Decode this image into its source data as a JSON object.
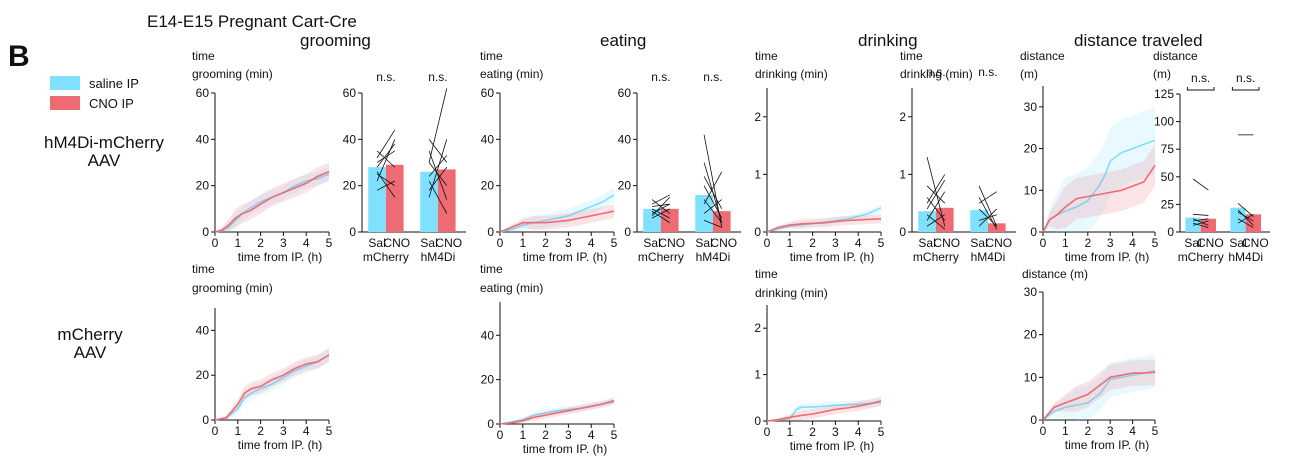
{
  "panel_letter": "B",
  "header_title": "E14-E15 Pregnant Cart-Cre",
  "columns": [
    "grooming",
    "eating",
    "drinking",
    "distance traveled"
  ],
  "legend": {
    "saline": {
      "label": "saline IP",
      "color": "#7fe0ff"
    },
    "cno": {
      "label": "CNO IP",
      "color": "#ef6b73"
    }
  },
  "rows": [
    "hM4Di-mCherry\nAAV",
    "mCherry\nAAV"
  ],
  "colors": {
    "saline": "#7fe0ff",
    "cno": "#ef6b73",
    "axis": "#111111"
  },
  "xlabel": "time from IP. (h)",
  "chart_data": [
    {
      "type": "line",
      "id": "grooming-hm4di",
      "ylabel": [
        "time",
        "grooming (min)"
      ],
      "xlabel": "time from IP. (h)",
      "xlim": [
        0,
        5
      ],
      "ylim": [
        0,
        60
      ],
      "yticks": [
        0,
        20,
        40,
        60
      ],
      "xticks": [
        0,
        1,
        2,
        3,
        4,
        5
      ],
      "series": [
        {
          "key": "saline",
          "x": [
            0,
            0.3,
            0.6,
            0.9,
            1.2,
            1.5,
            2,
            2.5,
            3,
            3.5,
            4,
            4.5,
            5
          ],
          "y": [
            0,
            0.5,
            2,
            5,
            8,
            10,
            13,
            15,
            17,
            20,
            22,
            23,
            25
          ],
          "band": 3
        },
        {
          "key": "cno",
          "x": [
            0,
            0.3,
            0.6,
            0.9,
            1.2,
            1.5,
            2,
            2.5,
            3,
            3.5,
            4,
            4.5,
            5
          ],
          "y": [
            0,
            0.8,
            3,
            6,
            8,
            9,
            12,
            15,
            17,
            19,
            21,
            24,
            26
          ],
          "band": 4
        }
      ]
    },
    {
      "type": "bar",
      "id": "grooming-hm4di-bar",
      "ylabel": [
        "time",
        "grooming (min)"
      ],
      "ylim": [
        0,
        60
      ],
      "yticks": [
        0,
        20,
        40,
        60
      ],
      "groups": [
        {
          "label": "mCherry",
          "sig": "n.s.",
          "saline": 28,
          "cno": 29,
          "pairs": [
            [
              22,
              40
            ],
            [
              30,
              35
            ],
            [
              25,
              20
            ],
            [
              35,
              28
            ],
            [
              28,
              38
            ],
            [
              18,
              22
            ],
            [
              32,
              44
            ],
            [
              26,
              15
            ]
          ]
        },
        {
          "label": "hM4Di",
          "sig": "n.s.",
          "saline": 26,
          "cno": 27,
          "pairs": [
            [
              40,
              30
            ],
            [
              30,
              62
            ],
            [
              18,
              28
            ],
            [
              35,
              14
            ],
            [
              24,
              33
            ],
            [
              15,
              40
            ],
            [
              30,
              20
            ],
            [
              22,
              8
            ]
          ]
        }
      ],
      "tick_labels": [
        "Sal",
        "CNO"
      ]
    },
    {
      "type": "line",
      "id": "eating-hm4di",
      "ylabel": [
        "time",
        "eating (min)"
      ],
      "xlabel": "time from IP. (h)",
      "xlim": [
        0,
        5
      ],
      "ylim": [
        0,
        60
      ],
      "yticks": [
        0,
        20,
        40,
        60
      ],
      "xticks": [
        0,
        1,
        2,
        3,
        4,
        5
      ],
      "series": [
        {
          "key": "saline",
          "x": [
            0,
            0.5,
            1,
            1.5,
            2,
            2.5,
            3,
            3.5,
            4,
            4.5,
            5
          ],
          "y": [
            0,
            1,
            3,
            4,
            5,
            6,
            7,
            9,
            11,
            13,
            16
          ],
          "band": 3
        },
        {
          "key": "cno",
          "x": [
            0,
            0.5,
            1,
            1.5,
            2,
            2.5,
            3,
            3.5,
            4,
            4.5,
            5
          ],
          "y": [
            0,
            2,
            4,
            4,
            4,
            4.5,
            5,
            6,
            7,
            8,
            9
          ],
          "band": 3
        }
      ]
    },
    {
      "type": "bar",
      "id": "eating-hm4di-bar",
      "ylabel": [
        "",
        ""
      ],
      "ylim": [
        0,
        60
      ],
      "yticks": [
        0,
        20,
        40,
        60
      ],
      "groups": [
        {
          "label": "mCherry",
          "sig": "n.s.",
          "saline": 10,
          "cno": 10,
          "pairs": [
            [
              8,
              12
            ],
            [
              10,
              6
            ],
            [
              12,
              16
            ],
            [
              6,
              10
            ],
            [
              9,
              4
            ],
            [
              14,
              8
            ],
            [
              11,
              12
            ],
            [
              7,
              15
            ]
          ]
        },
        {
          "label": "hM4Di",
          "sig": "n.s.",
          "saline": 16,
          "cno": 9,
          "pairs": [
            [
              42,
              2
            ],
            [
              30,
              4
            ],
            [
              20,
              6
            ],
            [
              12,
              26
            ],
            [
              8,
              14
            ],
            [
              5,
              2
            ],
            [
              24,
              10
            ],
            [
              14,
              4
            ]
          ]
        }
      ],
      "tick_labels": [
        "Sal",
        "CNO"
      ]
    },
    {
      "type": "line",
      "id": "drinking-hm4di",
      "ylabel": [
        "time",
        "drinking (min)"
      ],
      "xlabel": "time from IP. (h)",
      "xlim": [
        0,
        5
      ],
      "ylim": [
        0,
        2.5
      ],
      "yticks": [
        0,
        1,
        2
      ],
      "xticks": [
        0,
        1,
        2,
        3,
        4,
        5
      ],
      "series": [
        {
          "key": "saline",
          "x": [
            0,
            0.5,
            1,
            1.5,
            2,
            2.5,
            3,
            3.5,
            4,
            4.5,
            5
          ],
          "y": [
            0,
            0.05,
            0.1,
            0.12,
            0.15,
            0.17,
            0.2,
            0.22,
            0.27,
            0.33,
            0.42
          ],
          "band": 0.06
        },
        {
          "key": "cno",
          "x": [
            0,
            0.5,
            1,
            1.5,
            2,
            2.5,
            3,
            3.5,
            4,
            4.5,
            5
          ],
          "y": [
            0,
            0.08,
            0.12,
            0.14,
            0.15,
            0.16,
            0.18,
            0.2,
            0.21,
            0.22,
            0.23
          ],
          "band": 0.08
        }
      ]
    },
    {
      "type": "bar",
      "id": "drinking-hm4di-bar",
      "ylabel": [
        "time",
        "drinking (min)"
      ],
      "ylim": [
        0,
        2.5
      ],
      "yticks": [
        0,
        1,
        2
      ],
      "groups": [
        {
          "label": "mCherry",
          "sig": "n.s.",
          "saline": 0.36,
          "cno": 0.42,
          "pairs": [
            [
              1.3,
              0.1
            ],
            [
              0.8,
              0.5
            ],
            [
              0.5,
              1.0
            ],
            [
              0.2,
              0.7
            ],
            [
              0.1,
              0.3
            ],
            [
              0.6,
              0.2
            ],
            [
              0.4,
              0.9
            ],
            [
              0.3,
              0.05
            ]
          ]
        },
        {
          "label": "hM4Di",
          "sig": "n.s.",
          "saline": 0.38,
          "cno": 0.15,
          "pairs": [
            [
              0.8,
              0.1
            ],
            [
              0.5,
              0.7
            ],
            [
              0.2,
              0.3
            ],
            [
              0.6,
              0.05
            ],
            [
              0.1,
              0.4
            ],
            [
              0.4,
              0.1
            ]
          ]
        }
      ],
      "tick_labels": [
        "Sal",
        "CNO"
      ]
    },
    {
      "type": "line",
      "id": "distance-hm4di",
      "ylabel": [
        "distance",
        "(m)"
      ],
      "xlabel": "time from IP. (h)",
      "xlim": [
        0,
        5
      ],
      "ylim": [
        0,
        35
      ],
      "yticks": [
        0,
        10,
        20,
        30
      ],
      "xticks": [
        0,
        1,
        2,
        3,
        4,
        5
      ],
      "series": [
        {
          "key": "saline",
          "x": [
            0,
            0.3,
            0.6,
            1,
            1.5,
            2,
            2.5,
            2.8,
            3,
            3.5,
            4,
            4.5,
            5
          ],
          "y": [
            0,
            3,
            4,
            5,
            6,
            7.5,
            11,
            14,
            17,
            19,
            20,
            21,
            22
          ],
          "band": 8
        },
        {
          "key": "cno",
          "x": [
            0,
            0.3,
            0.6,
            1,
            1.5,
            2,
            2.5,
            3,
            3.5,
            4,
            4.5,
            5
          ],
          "y": [
            0,
            3,
            4,
            6,
            8,
            8.5,
            9,
            9.5,
            10,
            11,
            12,
            16
          ],
          "band": 5
        }
      ]
    },
    {
      "type": "bar",
      "id": "distance-hm4di-bar",
      "ylabel": [
        "distance",
        "(m)"
      ],
      "ylim": [
        0,
        125
      ],
      "yticks": [
        0,
        25,
        50,
        75,
        100,
        125
      ],
      "groups": [
        {
          "label": "mCherry",
          "sig": "n.s.",
          "saline": 13,
          "cno": 12,
          "pairs": [
            [
              48,
              38
            ],
            [
              16,
              15
            ],
            [
              10,
              12
            ],
            [
              8,
              4
            ],
            [
              12,
              6
            ],
            [
              6,
              10
            ]
          ]
        },
        {
          "label": "hM4Di",
          "sig": "n.s.",
          "saline": 22,
          "cno": 16,
          "pairs": [
            [
              88,
              88
            ],
            [
              26,
              14
            ],
            [
              18,
              10
            ],
            [
              12,
              4
            ],
            [
              8,
              16
            ],
            [
              20,
              6
            ]
          ]
        }
      ],
      "tick_labels": [
        "Sal",
        "CNO"
      ]
    },
    {
      "type": "line",
      "id": "grooming-mcherry",
      "ylabel": [
        "time",
        "grooming (min)"
      ],
      "xlabel": "time from IP. (h)",
      "xlim": [
        0,
        5
      ],
      "ylim": [
        0,
        50
      ],
      "yticks": [
        0,
        20,
        40
      ],
      "xticks": [
        0,
        1,
        2,
        3,
        4,
        5
      ],
      "series": [
        {
          "key": "saline",
          "x": [
            0,
            0.5,
            1,
            1.3,
            1.6,
            2,
            2.5,
            3,
            3.5,
            4,
            4.5,
            5
          ],
          "y": [
            0,
            1,
            5,
            10,
            12,
            14,
            16,
            19,
            22,
            24,
            26,
            29
          ],
          "band": 3
        },
        {
          "key": "cno",
          "x": [
            0,
            0.5,
            1,
            1.3,
            1.6,
            2,
            2.5,
            3,
            3.5,
            4,
            4.5,
            5
          ],
          "y": [
            0,
            1,
            7,
            12,
            14,
            15,
            18,
            20,
            23,
            25,
            26,
            29
          ],
          "band": 3
        }
      ]
    },
    {
      "type": "line",
      "id": "eating-mcherry",
      "ylabel": [
        "time",
        "eating (min)"
      ],
      "xlabel": "time from IP. (h)",
      "xlim": [
        0,
        5
      ],
      "ylim": [
        0,
        55
      ],
      "yticks": [
        0,
        20,
        40
      ],
      "xticks": [
        0,
        1,
        2,
        3,
        4,
        5
      ],
      "series": [
        {
          "key": "saline",
          "x": [
            0,
            0.5,
            1,
            1.5,
            2,
            2.5,
            3,
            3.5,
            4,
            4.5,
            5
          ],
          "y": [
            0,
            1,
            2,
            4,
            5,
            6,
            6.5,
            7,
            8,
            9,
            10
          ],
          "band": 1.5
        },
        {
          "key": "cno",
          "x": [
            0,
            0.5,
            1,
            1.5,
            2,
            2.5,
            3,
            3.5,
            4,
            4.5,
            5
          ],
          "y": [
            0,
            0.5,
            1.5,
            3,
            4,
            5,
            6,
            7,
            8,
            9,
            10.5
          ],
          "band": 1.5
        }
      ]
    },
    {
      "type": "line",
      "id": "drinking-mcherry",
      "ylabel": [
        "time",
        "drinking (min)"
      ],
      "xlabel": "time from IP. (h)",
      "xlim": [
        0,
        5
      ],
      "ylim": [
        0,
        2.5
      ],
      "yticks": [
        0,
        1,
        2
      ],
      "xticks": [
        0,
        1,
        2,
        3,
        4,
        5
      ],
      "series": [
        {
          "key": "saline",
          "x": [
            0,
            0.5,
            1,
            1.3,
            1.5,
            2,
            2.5,
            3,
            3.5,
            4,
            4.5,
            5
          ],
          "y": [
            0,
            0.02,
            0.05,
            0.25,
            0.3,
            0.3,
            0.32,
            0.34,
            0.35,
            0.36,
            0.38,
            0.4
          ],
          "band": 0.08
        },
        {
          "key": "cno",
          "x": [
            0,
            0.5,
            1,
            1.5,
            2,
            2.5,
            3,
            3.5,
            4,
            4.5,
            5
          ],
          "y": [
            0,
            0.03,
            0.08,
            0.12,
            0.15,
            0.2,
            0.25,
            0.28,
            0.32,
            0.37,
            0.43
          ],
          "band": 0.1
        }
      ]
    },
    {
      "type": "line",
      "id": "distance-mcherry",
      "ylabel": [
        "distance (m)",
        ""
      ],
      "xlabel": "time from IP. (h)",
      "xlim": [
        0,
        5
      ],
      "ylim": [
        0,
        30
      ],
      "yticks": [
        0,
        10,
        20,
        30
      ],
      "xticks": [
        0,
        1,
        2,
        3,
        4,
        5
      ],
      "series": [
        {
          "key": "saline",
          "x": [
            0,
            0.5,
            1,
            1.5,
            2,
            2.5,
            2.8,
            3,
            3.5,
            4,
            4.5,
            5
          ],
          "y": [
            0,
            2,
            3,
            3.5,
            4,
            6,
            8,
            9.5,
            10,
            10.5,
            11,
            11.5
          ],
          "band": 4
        },
        {
          "key": "cno",
          "x": [
            0,
            0.5,
            1,
            1.5,
            2,
            2.5,
            3,
            3.5,
            4,
            4.5,
            5
          ],
          "y": [
            0,
            3,
            4,
            5,
            6,
            8,
            10,
            10.5,
            11,
            11,
            11.2
          ],
          "band": 3
        }
      ]
    }
  ]
}
